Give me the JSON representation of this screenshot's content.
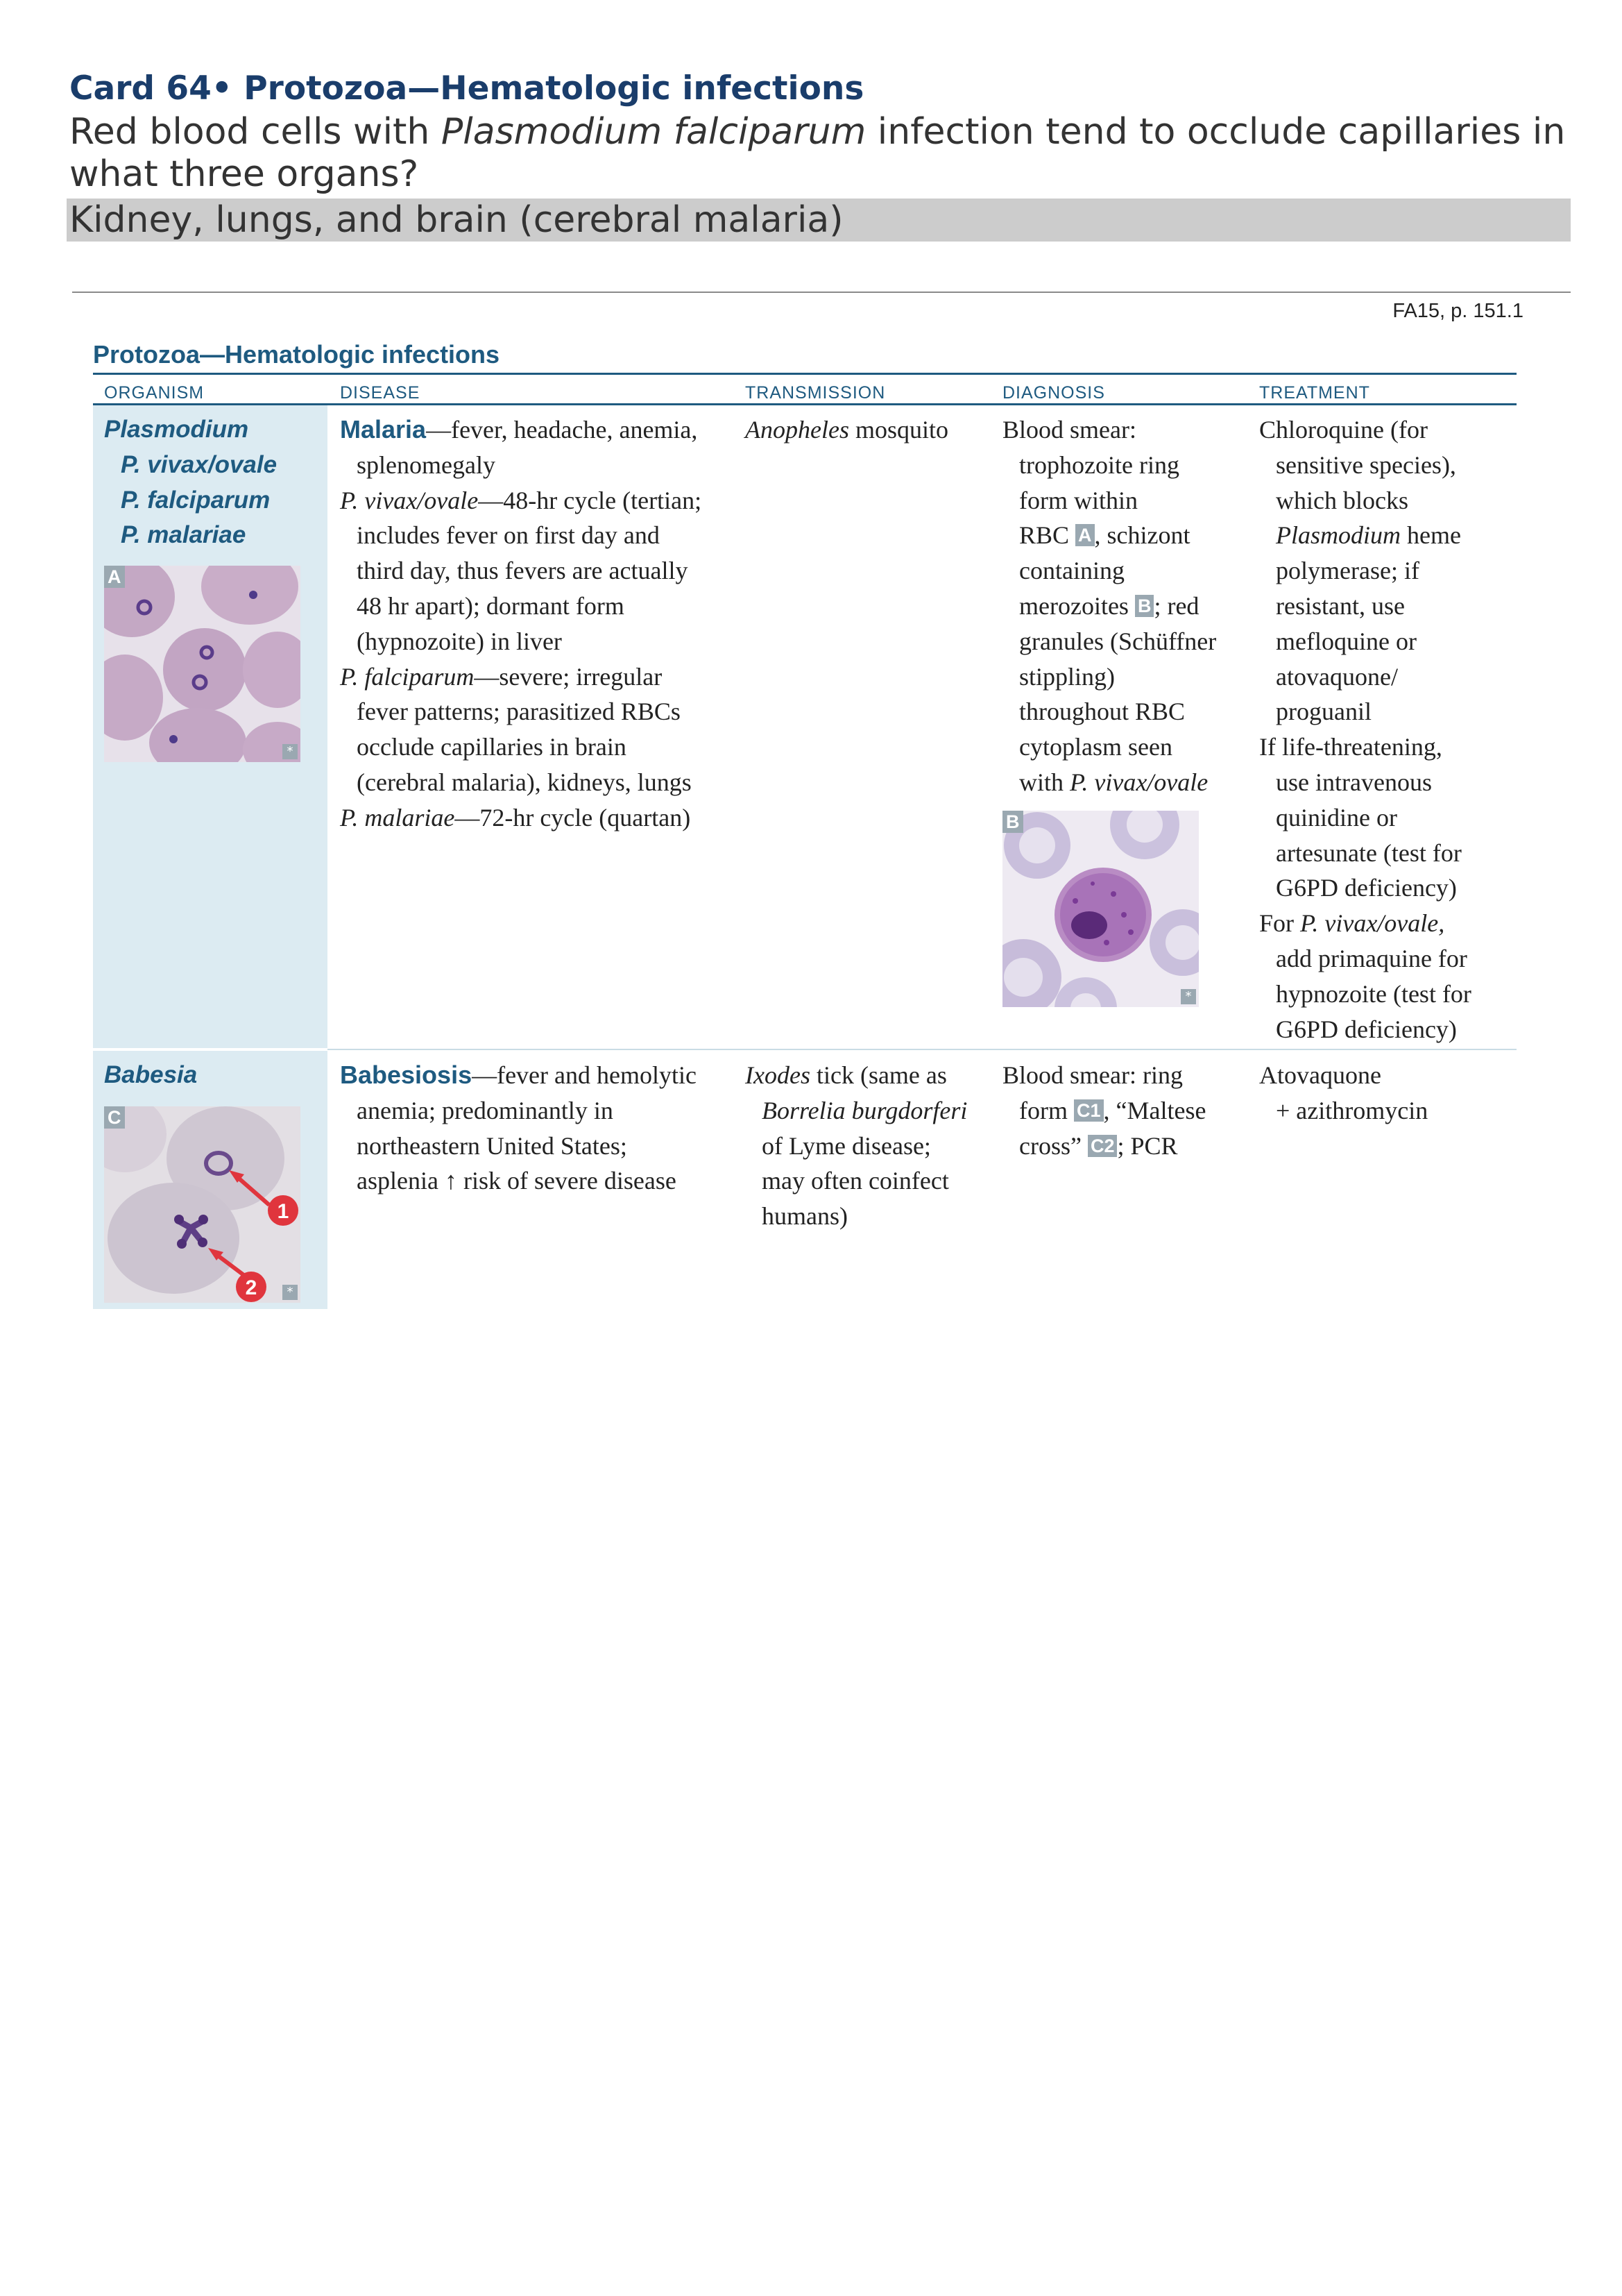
{
  "card": {
    "title": "Card 64• Protozoa—Hematologic infections",
    "question_pre": "Red blood cells with ",
    "question_em": "Plasmodium falciparum",
    "question_post": " infection tend to occlude capillaries in what three organs?",
    "answer": "Kidney, lungs, and brain (cerebral malaria)"
  },
  "reference": "FA15, p. 151.1",
  "table": {
    "title": "Protozoa—Hematologic infections",
    "headers": [
      "ORGANISM",
      "DISEASE",
      "TRANSMISSION",
      "DIAGNOSIS",
      "TREATMENT"
    ],
    "row1": {
      "organism": [
        "Plasmodium",
        "P. vivax/ovale",
        "P. falciparum",
        "P. malariae"
      ],
      "image_label": "A",
      "image_star": "*",
      "disease": {
        "malaria_kw": "Malaria",
        "malaria_txt1": "—fever, headache, anemia,",
        "malaria_txt2": "splenomegaly",
        "vivax_em": "P. vivax/ovale",
        "vivax_l1": "—48-hr cycle (tertian;",
        "vivax_l2": "includes fever on first day and",
        "vivax_l3": "third day, thus fevers are actually",
        "vivax_l4": "48 hr apart); dormant form",
        "vivax_l5": "(hypnozoite) in liver",
        "falc_em": "P. falciparum",
        "falc_l1": "—severe; irregular",
        "falc_l2": "fever patterns; parasitized RBCs",
        "falc_l3": "occlude capillaries in brain",
        "falc_l4": "(cerebral malaria), kidneys, lungs",
        "mal_em": "P. malariae",
        "mal_l1": "—72-hr cycle (quartan)"
      },
      "transmission_em": "Anopheles",
      "transmission_txt": " mosquito",
      "diagnosis": {
        "l1": "Blood smear:",
        "l2": "trophozoite ring",
        "l3": "form within",
        "l4a": "RBC ",
        "l4lab": "A",
        "l4b": ", schizont",
        "l5": "containing",
        "l6a": "merozoites ",
        "l6lab": "B",
        "l6b": "; red",
        "l7": "granules (Schüffner",
        "l8": "stippling)",
        "l9": "throughout RBC",
        "l10": "cytoplasm seen",
        "l11a": "with ",
        "l11em": "P. vivax/ovale"
      },
      "diagnosis_image_label": "B",
      "diagnosis_image_star": "*",
      "treatment": {
        "l1": "Chloroquine (for",
        "l2": "sensitive species),",
        "l3": "which blocks",
        "l4em": "Plasmodium",
        "l4b": " heme",
        "l5": "polymerase; if",
        "l6": "resistant, use",
        "l7": "mefloquine or",
        "l8": "atovaquone/",
        "l9": "proguanil",
        "l10": "If life-threatening,",
        "l11": "use intravenous",
        "l12": "quinidine or",
        "l13": "artesunate (test for",
        "l14": "G6PD deficiency)",
        "l15a": "For ",
        "l15em": "P. vivax/ovale,",
        "l16": "add primaquine for",
        "l17": "hypnozoite (test for",
        "l18": "G6PD deficiency)"
      }
    },
    "row2": {
      "organism": "Babesia",
      "image_label": "C",
      "image_star": "*",
      "marker1": "1",
      "marker2": "2",
      "disease": {
        "kw": "Babesiosis",
        "l1": "—fever and hemolytic",
        "l2": "anemia; predominantly in",
        "l3": "northeastern United States;",
        "l4": "asplenia ↑ risk of severe disease"
      },
      "transmission": {
        "l1em": "Ixodes",
        "l1b": " tick (same as",
        "l2em": "Borrelia burgdorferi",
        "l3": "of Lyme disease;",
        "l4": "may often coinfect",
        "l5": "humans)"
      },
      "diagnosis": {
        "l1": "Blood smear: ring",
        "l2a": "form ",
        "l2lab": "C1",
        "l2b": ", “Maltese",
        "l3a": "cross” ",
        "l3lab": "C2",
        "l3b": "; PCR"
      },
      "treatment": {
        "l1": "Atovaquone",
        "l2": "+ azithromycin"
      }
    }
  },
  "colors": {
    "title": "#1a3d6b",
    "accent": "#1e5a80",
    "organism_bg": "#dcebf2",
    "answer_band": "#cccccc",
    "label_bg": "#9aa8b1",
    "marker_red": "#e0353d"
  }
}
